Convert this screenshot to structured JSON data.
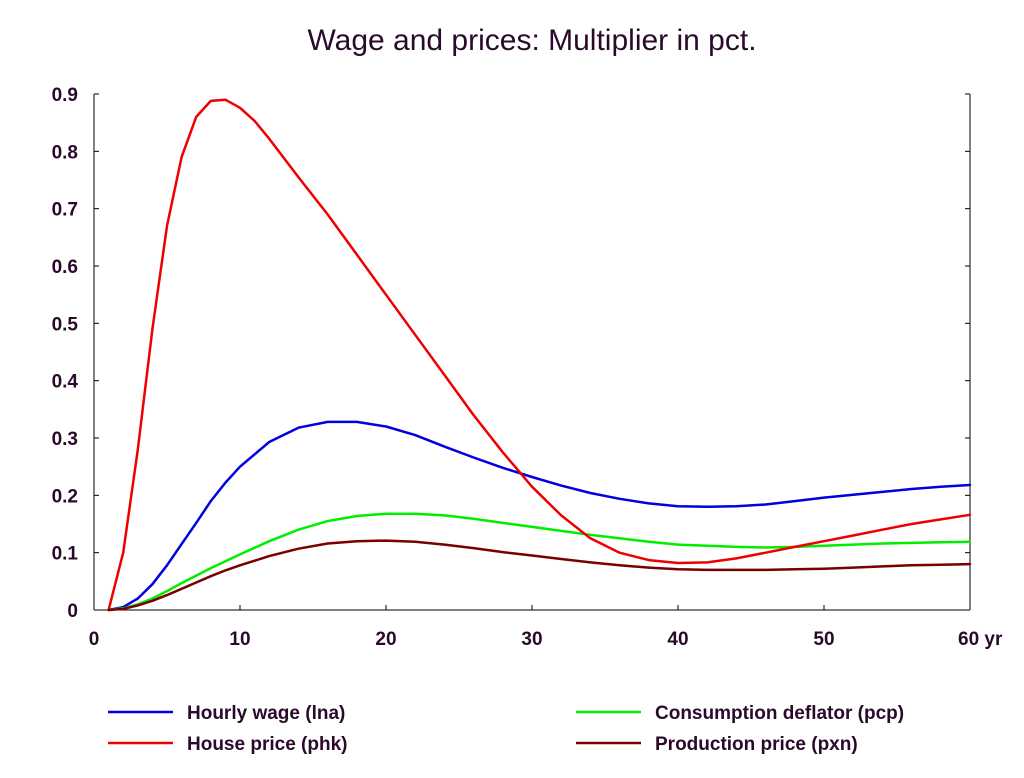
{
  "chart_data": {
    "type": "line",
    "title": "Wage and prices: Multiplier in pct.",
    "xlabel": "",
    "ylabel": "",
    "x_unit_label": "yr",
    "xlim": [
      0,
      60
    ],
    "ylim": [
      0,
      0.9
    ],
    "x_ticks": [
      0,
      10,
      20,
      30,
      40,
      50,
      60
    ],
    "x_tick_labels": [
      "0",
      "10",
      "20",
      "30",
      "40",
      "50",
      "60 yr"
    ],
    "y_ticks": [
      0,
      0.1,
      0.2,
      0.3,
      0.4,
      0.5,
      0.6,
      0.7,
      0.8,
      0.9
    ],
    "y_tick_labels": [
      "0",
      "0.1",
      "0.2",
      "0.3",
      "0.4",
      "0.5",
      "0.6",
      "0.7",
      "0.8",
      "0.9"
    ],
    "grid": false,
    "legend_position": "bottom",
    "series": [
      {
        "name": "Hourly wage (lna)",
        "color": "#0000e0",
        "x": [
          1,
          2,
          3,
          4,
          5,
          6,
          7,
          8,
          9,
          10,
          12,
          14,
          16,
          18,
          20,
          22,
          24,
          26,
          28,
          30,
          32,
          34,
          36,
          38,
          40,
          42,
          44,
          46,
          48,
          50,
          52,
          54,
          56,
          58,
          60
        ],
        "values": [
          0,
          0.005,
          0.02,
          0.045,
          0.078,
          0.115,
          0.152,
          0.19,
          0.222,
          0.25,
          0.293,
          0.318,
          0.328,
          0.328,
          0.32,
          0.305,
          0.285,
          0.266,
          0.248,
          0.232,
          0.217,
          0.204,
          0.194,
          0.186,
          0.181,
          0.18,
          0.181,
          0.184,
          0.19,
          0.196,
          0.201,
          0.206,
          0.211,
          0.215,
          0.218
        ]
      },
      {
        "name": "Consumption deflator (pcp)",
        "color": "#00ee00",
        "x": [
          1,
          2,
          3,
          4,
          5,
          6,
          7,
          8,
          9,
          10,
          12,
          14,
          16,
          18,
          20,
          22,
          24,
          26,
          28,
          30,
          32,
          34,
          36,
          38,
          40,
          42,
          44,
          46,
          48,
          50,
          52,
          54,
          56,
          58,
          60
        ],
        "values": [
          0,
          0.003,
          0.01,
          0.02,
          0.033,
          0.047,
          0.06,
          0.073,
          0.085,
          0.097,
          0.12,
          0.14,
          0.155,
          0.164,
          0.168,
          0.168,
          0.165,
          0.159,
          0.152,
          0.145,
          0.138,
          0.131,
          0.125,
          0.119,
          0.114,
          0.112,
          0.11,
          0.109,
          0.11,
          0.112,
          0.114,
          0.116,
          0.117,
          0.118,
          0.119
        ]
      },
      {
        "name": "House price (phk)",
        "color": "#ee0000",
        "x": [
          1,
          2,
          3,
          4,
          5,
          6,
          7,
          8,
          9,
          10,
          11,
          12,
          14,
          16,
          18,
          20,
          22,
          24,
          26,
          28,
          30,
          32,
          34,
          36,
          38,
          40,
          42,
          44,
          46,
          48,
          50,
          52,
          54,
          56,
          58,
          60
        ],
        "values": [
          0,
          0.1,
          0.28,
          0.49,
          0.67,
          0.79,
          0.86,
          0.888,
          0.89,
          0.876,
          0.853,
          0.822,
          0.755,
          0.69,
          0.62,
          0.55,
          0.48,
          0.41,
          0.34,
          0.275,
          0.215,
          0.165,
          0.125,
          0.1,
          0.087,
          0.082,
          0.083,
          0.09,
          0.1,
          0.11,
          0.12,
          0.13,
          0.14,
          0.15,
          0.158,
          0.166
        ]
      },
      {
        "name": "Production price (pxn)",
        "color": "#7a0000",
        "x": [
          1,
          2,
          3,
          4,
          5,
          6,
          7,
          8,
          9,
          10,
          12,
          14,
          16,
          18,
          20,
          22,
          24,
          26,
          28,
          30,
          32,
          34,
          36,
          38,
          40,
          42,
          44,
          46,
          48,
          50,
          52,
          54,
          56,
          58,
          60
        ],
        "values": [
          0,
          0.002,
          0.008,
          0.016,
          0.026,
          0.037,
          0.048,
          0.059,
          0.069,
          0.078,
          0.094,
          0.107,
          0.116,
          0.12,
          0.121,
          0.119,
          0.114,
          0.108,
          0.101,
          0.095,
          0.089,
          0.083,
          0.078,
          0.074,
          0.071,
          0.07,
          0.07,
          0.07,
          0.071,
          0.072,
          0.074,
          0.076,
          0.078,
          0.079,
          0.08
        ]
      }
    ]
  },
  "legend": {
    "items": [
      {
        "name": "Hourly wage (lna)",
        "color": "#0000e0"
      },
      {
        "name": "Consumption deflator (pcp)",
        "color": "#00ee00"
      },
      {
        "name": "House price (phk)",
        "color": "#ee0000"
      },
      {
        "name": "Production price (pxn)",
        "color": "#7a0000"
      }
    ]
  }
}
